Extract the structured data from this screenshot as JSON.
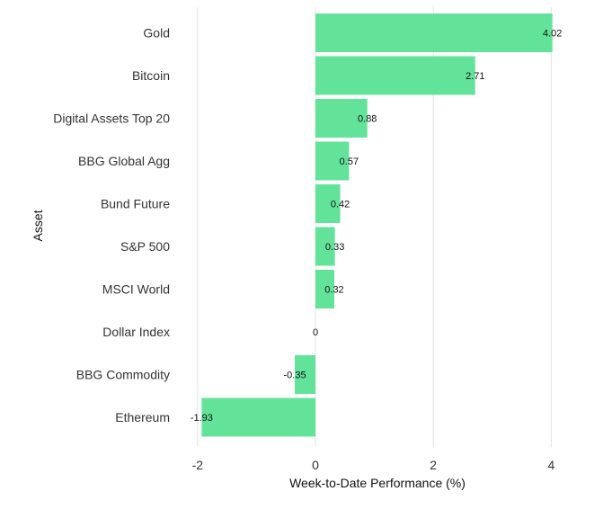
{
  "chart_data": {
    "type": "bar",
    "orientation": "horizontal",
    "categories": [
      "Gold",
      "Bitcoin",
      "Digital Assets Top 20",
      "BBG Global Agg",
      "Bund Future",
      "S&P 500",
      "MSCI World",
      "Dollar Index",
      "BBG Commodity",
      "Ethereum"
    ],
    "values": [
      4.02,
      2.71,
      0.88,
      0.57,
      0.42,
      0.33,
      0.32,
      0,
      -0.35,
      -1.93
    ],
    "value_labels": [
      "4.02",
      "2.71",
      "0.88",
      "0.57",
      "0.42",
      "0.33",
      "0.32",
      "0",
      "-0.35",
      "-1.93"
    ],
    "title": "",
    "xlabel": "Week-to-Date Performance (%)",
    "ylabel": "Asset",
    "xlim": [
      -2.2,
      4.3
    ],
    "xticks": [
      -2,
      0,
      2,
      4
    ],
    "xtick_labels": [
      "-2",
      "0",
      "2",
      "4"
    ],
    "grid": "vertical",
    "bar_color": "#63e39a"
  }
}
